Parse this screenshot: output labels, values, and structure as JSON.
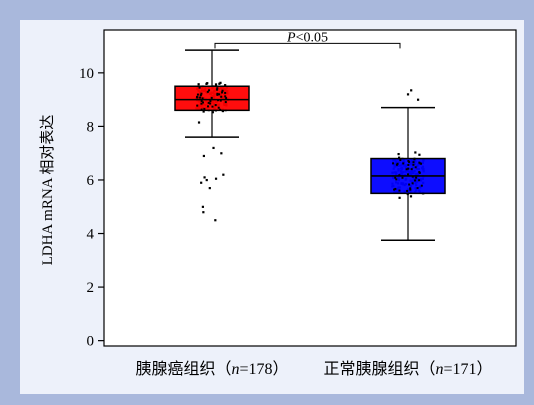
{
  "colors": {
    "page_background": "#a9b8dc",
    "panel_background": "#edf1fa",
    "plot_background": "#ffffff",
    "tumor_box": "#ff0000",
    "normal_box": "#0000ff"
  },
  "chart_data": {
    "type": "box",
    "ylabel": "LDHA mRNA 相对表达",
    "ylim": [
      -0.2,
      11.6
    ],
    "yticks": [
      0,
      2,
      4,
      6,
      8,
      10
    ],
    "ytick_labels": [
      "0",
      "2",
      "4",
      "6",
      "8",
      "10"
    ],
    "grid": false,
    "significance": {
      "label": "P<0.05",
      "label_italic_part": "P",
      "label_rest": "<0.05",
      "between": [
        0,
        1
      ],
      "y": 11.1
    },
    "groups": [
      {
        "label_prefix": "胰腺癌组织（",
        "label_n": "n",
        "label_suffix": "=178）",
        "n": 178,
        "color": "#ff0000",
        "whisker_low": 7.6,
        "q1": 8.6,
        "median": 9.0,
        "q3": 9.5,
        "whisker_high": 10.85,
        "points_spread": [
          7.4,
          10.85
        ],
        "outliers": [
          4.5,
          4.8,
          5.0,
          5.7,
          5.9,
          6.0,
          6.05,
          6.1,
          6.2,
          7.0,
          7.2,
          6.9
        ]
      },
      {
        "label_prefix": "正常胰腺组织（",
        "label_n": "n",
        "label_suffix": "=171）",
        "n": 171,
        "color": "#0000ff",
        "whisker_low": 3.75,
        "q1": 5.5,
        "median": 6.15,
        "q3": 6.8,
        "whisker_high": 8.7,
        "points_spread": [
          3.75,
          8.7
        ],
        "outliers": [
          9.0,
          9.2,
          9.35
        ]
      }
    ]
  }
}
